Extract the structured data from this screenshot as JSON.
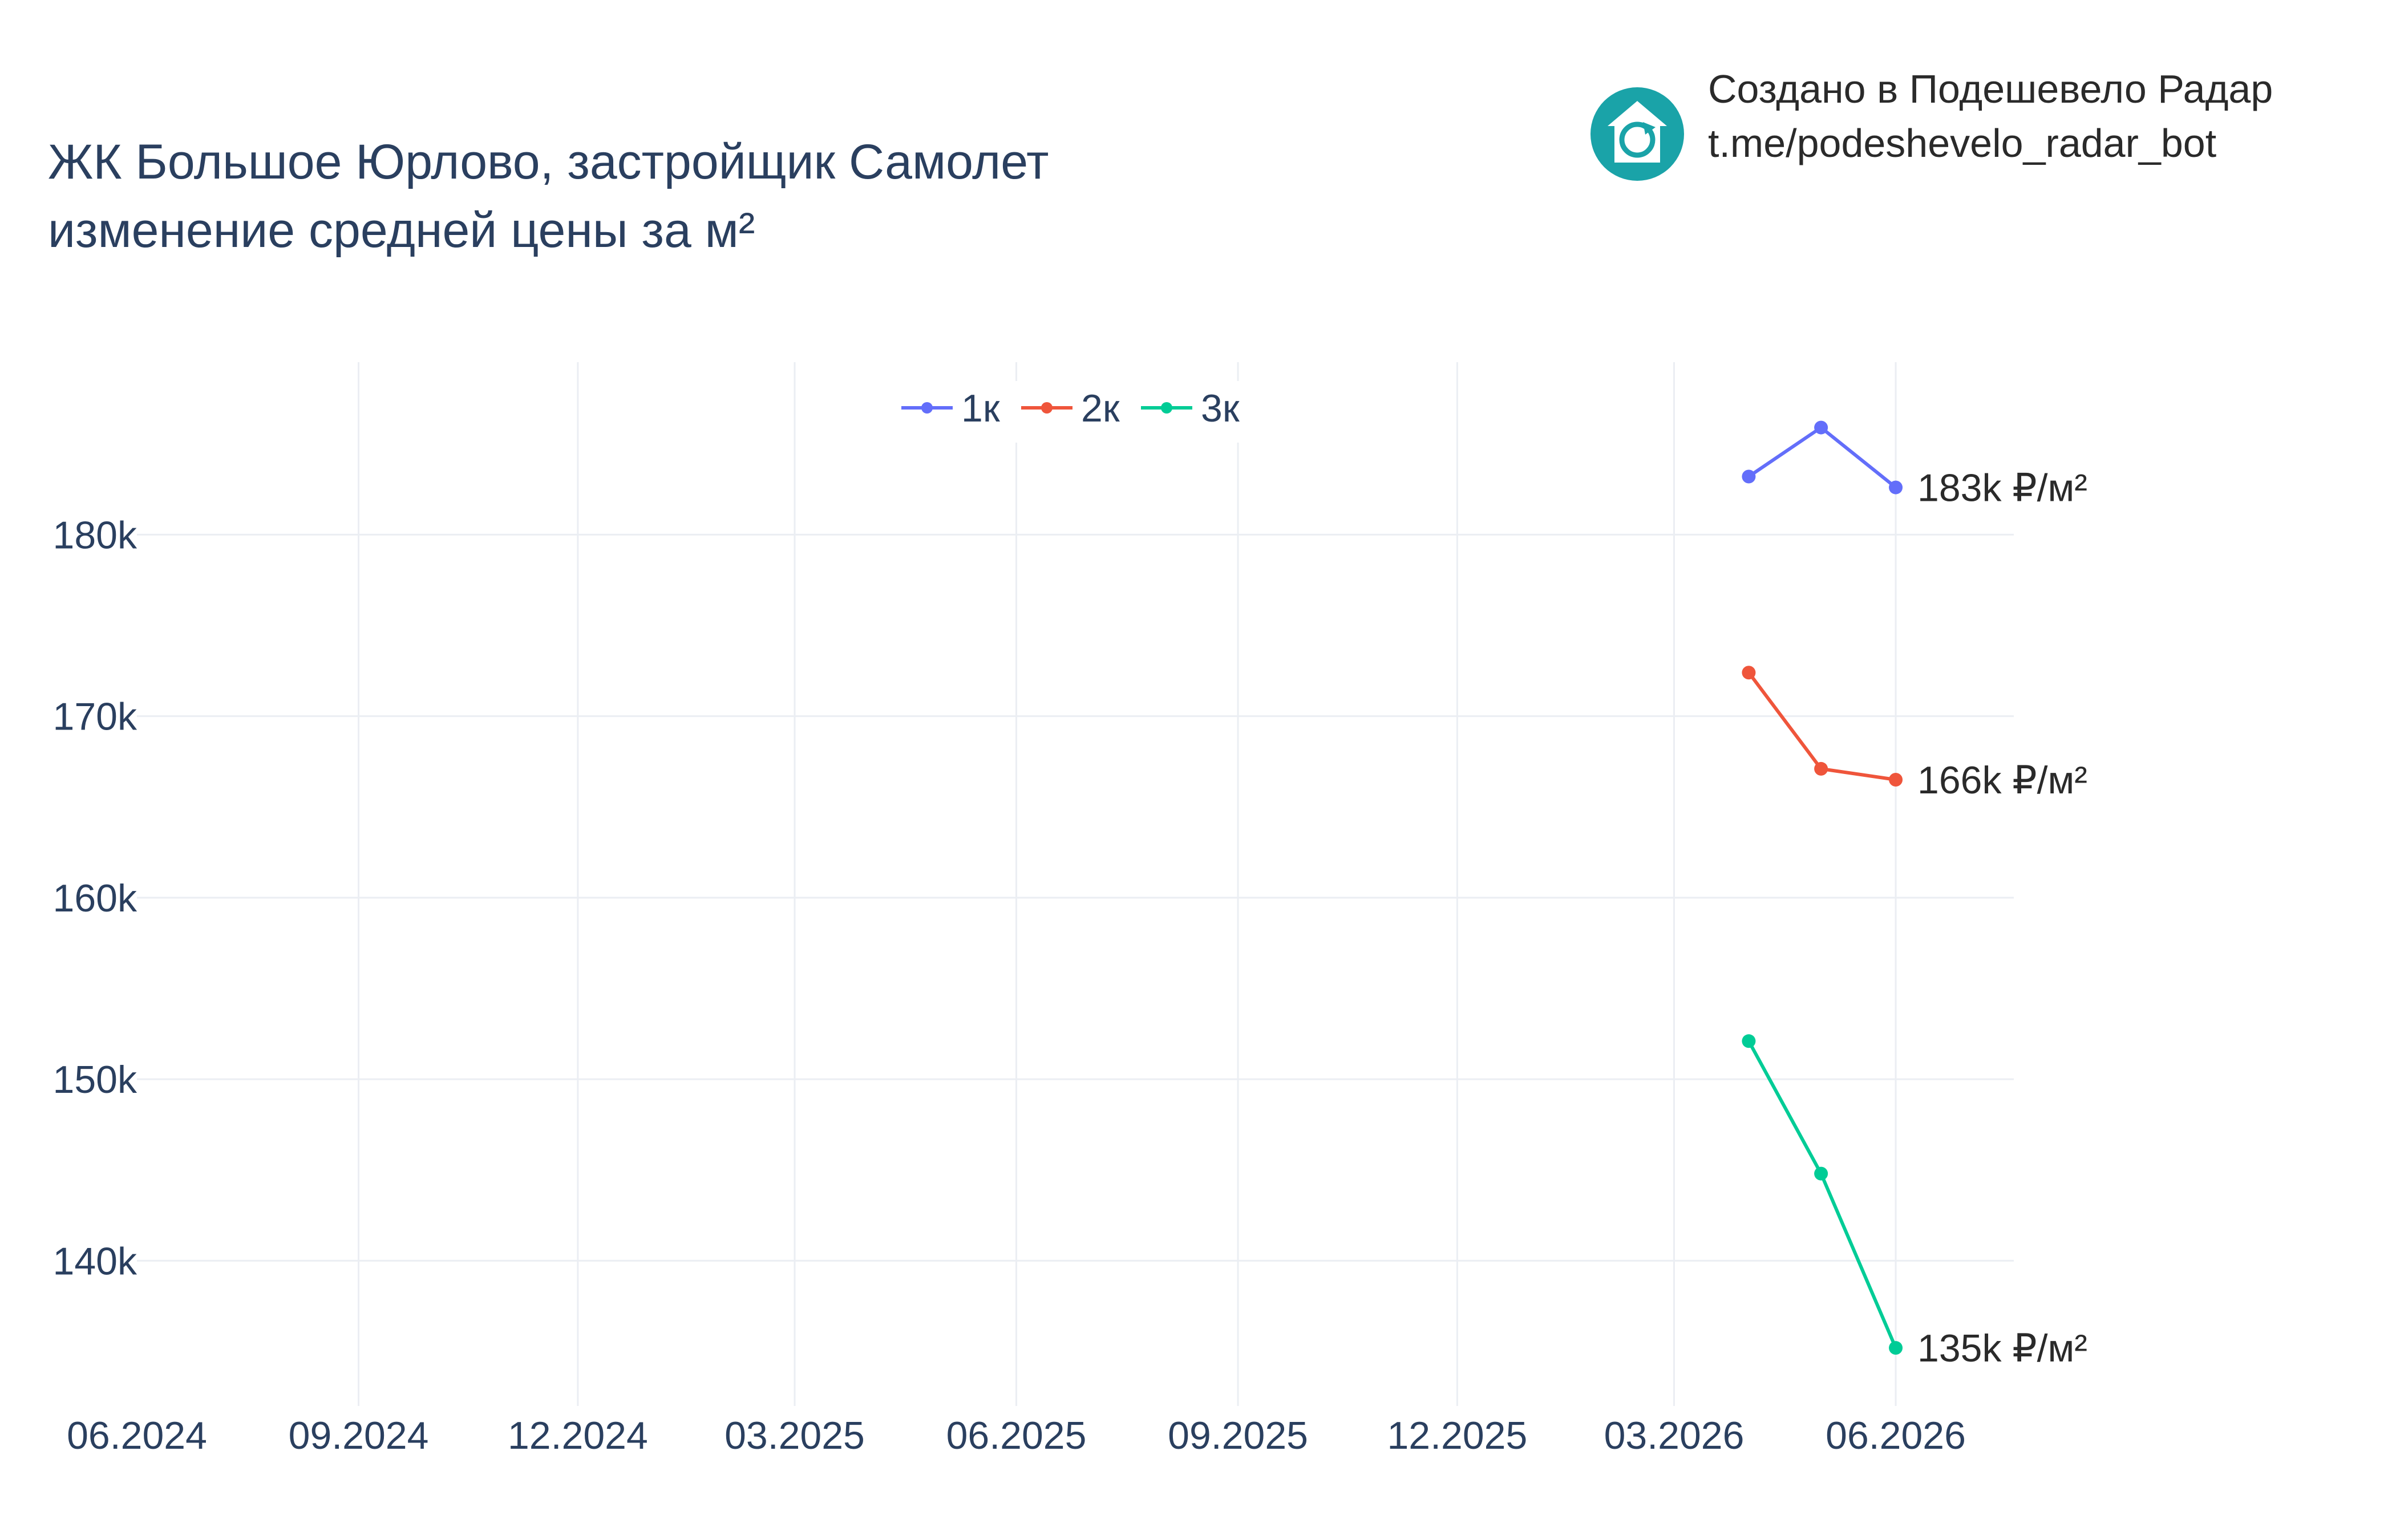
{
  "branding": {
    "line1": "Создано в Подешевело Радар",
    "line2": "t.me/podeshevelo_radar_bot",
    "logo_icon": "house-refresh-icon",
    "logo_color": "#1aa3a8"
  },
  "chart_data": {
    "type": "line",
    "title": [
      "ЖК Большое Юрлово, застройщик Самолет",
      "изменение средней цены за м²"
    ],
    "xlabel": "",
    "ylabel": "",
    "x_ticks": [
      "06.2024",
      "09.2024",
      "12.2024",
      "03.2025",
      "06.2025",
      "09.2025",
      "12.2025",
      "03.2026",
      "06.2026"
    ],
    "x_range": [
      "2024-06-01",
      "2026-07-20"
    ],
    "y_ticks": [
      "140k",
      "150k",
      "160k",
      "170k",
      "180k"
    ],
    "y_tick_values": [
      140000,
      150000,
      160000,
      170000,
      180000
    ],
    "ylim": [
      132000,
      189500
    ],
    "grid": true,
    "legend_position": "top-center",
    "series": [
      {
        "name": "1к",
        "color": "#636efa",
        "points": [
          {
            "x": "2026-04-01",
            "y": 183200
          },
          {
            "x": "2026-05-01",
            "y": 185900
          },
          {
            "x": "2026-06-01",
            "y": 182600
          }
        ],
        "end_label": "183k ₽/м²"
      },
      {
        "name": "2к",
        "color": "#ef553b",
        "points": [
          {
            "x": "2026-04-01",
            "y": 172400
          },
          {
            "x": "2026-05-01",
            "y": 167100
          },
          {
            "x": "2026-06-01",
            "y": 166500
          }
        ],
        "end_label": "166k ₽/м²"
      },
      {
        "name": "3к",
        "color": "#00cc96",
        "points": [
          {
            "x": "2026-04-01",
            "y": 152100
          },
          {
            "x": "2026-05-01",
            "y": 144800
          },
          {
            "x": "2026-06-01",
            "y": 135200
          }
        ],
        "end_label": "135k ₽/м²"
      }
    ]
  }
}
